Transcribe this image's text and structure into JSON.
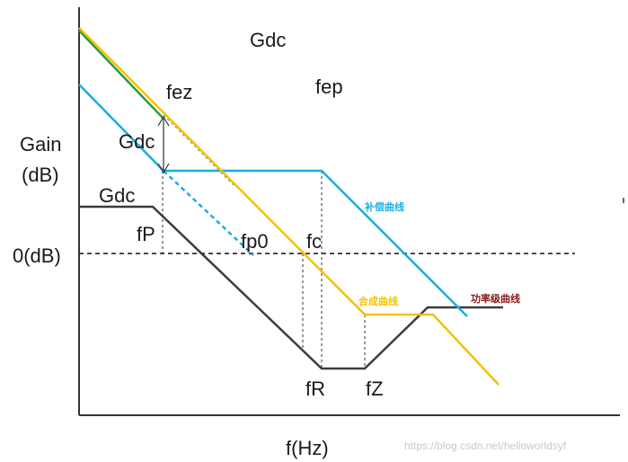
{
  "labels": {
    "gdc_top": "Gdc",
    "fez": "fez",
    "fep": "fep",
    "gain": "Gain",
    "db_unit": "(dB)",
    "gdc_arrow": "Gdc",
    "gdc_left": "Gdc",
    "fp": "fP",
    "fp0": "fp0",
    "fc": "fc",
    "zero_db": "0(dB)",
    "fr": "fR",
    "fz": "fZ",
    "x_axis": "f(Hz)"
  },
  "legend": {
    "compensation_curve": "补偿曲线",
    "composite_curve": "合成曲线",
    "power_stage_curve": "功率级曲线"
  },
  "watermark": "https://blog.csdn.net/helloworldsyf",
  "colors": {
    "compensation": "#1aaee0",
    "composite": "#f2c200",
    "power_stage": "#3c3c3c",
    "power_stage_label": "#8b1a1a",
    "green_trace": "#2e9a3c",
    "axis": "#333333"
  }
}
